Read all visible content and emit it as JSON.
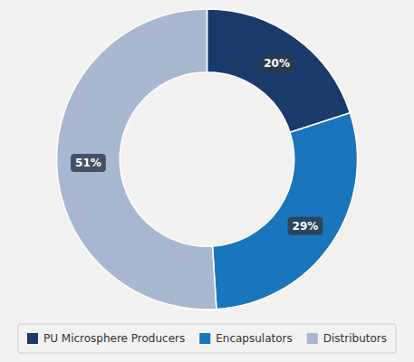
{
  "chart_data": {
    "type": "donut",
    "categories": [
      "PU Microsphere Producers",
      "Encapsulators",
      "Distributors"
    ],
    "values": [
      20,
      29,
      51
    ],
    "value_labels": [
      "20%",
      "29%",
      "51%"
    ],
    "colors": [
      "#1a3a6b",
      "#1b75bc",
      "#a8b8d0"
    ],
    "data_labels": true,
    "legend": "bottom"
  }
}
